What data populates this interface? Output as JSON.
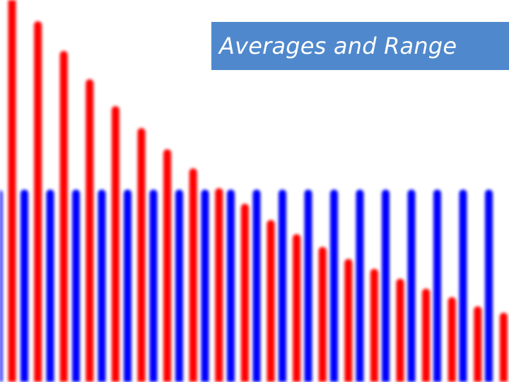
{
  "title": "Averages and Range",
  "colors": {
    "background": "#ffffff",
    "blue_bars": "#0000ff",
    "red_bars": "#ff0000",
    "title_box": "#4f88cc",
    "title_text": "#ffffff"
  }
}
